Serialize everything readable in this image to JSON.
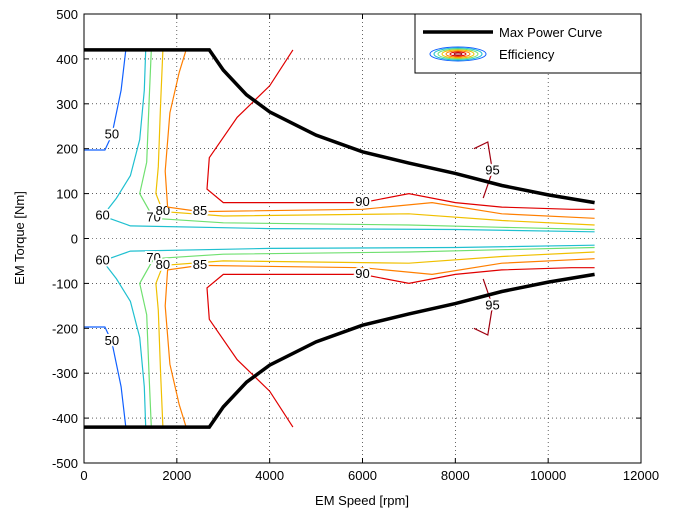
{
  "chart_data": {
    "type": "contour",
    "xlabel": "EM Speed [rpm]",
    "ylabel": "EM Torque [Nm]",
    "xlim": [
      0,
      12000
    ],
    "xticks": [
      0,
      2000,
      4000,
      6000,
      8000,
      10000,
      12000
    ],
    "ylim": [
      -500,
      500
    ],
    "yticks": [
      -500,
      -400,
      -300,
      -200,
      -100,
      0,
      100,
      200,
      300,
      400,
      500
    ],
    "grid": true,
    "legend": "upper right",
    "series": [
      {
        "name": "Max Power Curve",
        "color": "#000000",
        "x": [
          0,
          2700,
          3000,
          3500,
          4000,
          5000,
          6000,
          7000,
          8000,
          9000,
          10000,
          11000,
          null,
          0,
          2700,
          3000,
          3500,
          4000,
          5000,
          6000,
          7000,
          8000,
          9000,
          10000,
          11000
        ],
        "y": [
          420,
          420,
          375,
          320,
          282,
          230,
          193,
          168,
          145,
          118,
          97,
          80,
          null,
          -420,
          -420,
          -375,
          -320,
          -282,
          -230,
          -193,
          -168,
          -145,
          -118,
          -97,
          -80
        ]
      }
    ],
    "contour_name": "Efficiency",
    "contours": [
      {
        "level": 50,
        "color": "#1060ff",
        "x": [
          900,
          800,
          600,
          450,
          0,
          null,
          900,
          800,
          600,
          450,
          0
        ],
        "y": [
          420,
          330,
          230,
          197,
          197,
          null,
          -420,
          -330,
          -230,
          -197,
          -197
        ]
      },
      {
        "level": 60,
        "color": "#20c0d0",
        "x": [
          1330,
          1300,
          1200,
          1000,
          700,
          400,
          1000,
          4000,
          8000,
          11000,
          null,
          1330,
          1300,
          1200,
          1000,
          700,
          400,
          1000,
          4000,
          8000,
          11000
        ],
        "y": [
          420,
          330,
          220,
          140,
          90,
          50,
          28,
          22,
          20,
          15,
          null,
          -420,
          -330,
          -220,
          -140,
          -90,
          -50,
          -28,
          -22,
          -20,
          -15
        ]
      },
      {
        "level": 70,
        "color": "#70e070",
        "x": [
          1450,
          1400,
          1350,
          1200,
          1500,
          3000,
          7000,
          9000,
          11000,
          null,
          1450,
          1400,
          1350,
          1200,
          1500,
          3000,
          7000,
          9000,
          11000
        ],
        "y": [
          420,
          300,
          170,
          100,
          45,
          35,
          30,
          25,
          20,
          null,
          -420,
          -300,
          -170,
          -100,
          -45,
          -35,
          -30,
          -25,
          -20
        ]
      },
      {
        "level": 80,
        "color": "#f0c000",
        "x": [
          1700,
          1650,
          1600,
          1550,
          1700,
          3000,
          7000,
          9000,
          11000,
          null,
          1700,
          1650,
          1600,
          1550,
          1700,
          3000,
          7000,
          9000,
          11000
        ],
        "y": [
          420,
          300,
          160,
          100,
          60,
          50,
          55,
          40,
          30,
          null,
          -420,
          -300,
          -160,
          -100,
          -60,
          -50,
          -55,
          -40,
          -30
        ]
      },
      {
        "level": 85,
        "color": "#ff7f00",
        "x": [
          2200,
          2050,
          1850,
          1750,
          1800,
          2500,
          6000,
          7500,
          9000,
          11000,
          null,
          2200,
          2050,
          1850,
          1750,
          1800,
          2500,
          6000,
          7500,
          9000,
          11000
        ],
        "y": [
          420,
          370,
          280,
          150,
          70,
          60,
          65,
          80,
          55,
          45,
          null,
          -420,
          -370,
          -280,
          -150,
          -70,
          -60,
          -65,
          -80,
          -55,
          -45
        ]
      },
      {
        "level": 90,
        "color": "#e00000",
        "x": [
          4500,
          4000,
          3300,
          2700,
          2650,
          3000,
          6000,
          7000,
          8000,
          9000,
          10500,
          11000,
          null,
          4500,
          4000,
          3300,
          2700,
          2650,
          3000,
          6000,
          7000,
          8000,
          9000,
          10500,
          11000
        ],
        "y": [
          420,
          340,
          270,
          180,
          110,
          80,
          80,
          100,
          80,
          70,
          65,
          65,
          null,
          -420,
          -340,
          -270,
          -180,
          -110,
          -80,
          -80,
          -100,
          -80,
          -70,
          -65,
          -65
        ]
      },
      {
        "level": 95,
        "color": "#a00010",
        "x": [
          8400,
          8700,
          8800,
          8600,
          null,
          8400,
          8700,
          8800,
          8600
        ],
        "y": [
          200,
          215,
          150,
          90,
          null,
          -200,
          -215,
          -150,
          -90
        ]
      }
    ]
  }
}
